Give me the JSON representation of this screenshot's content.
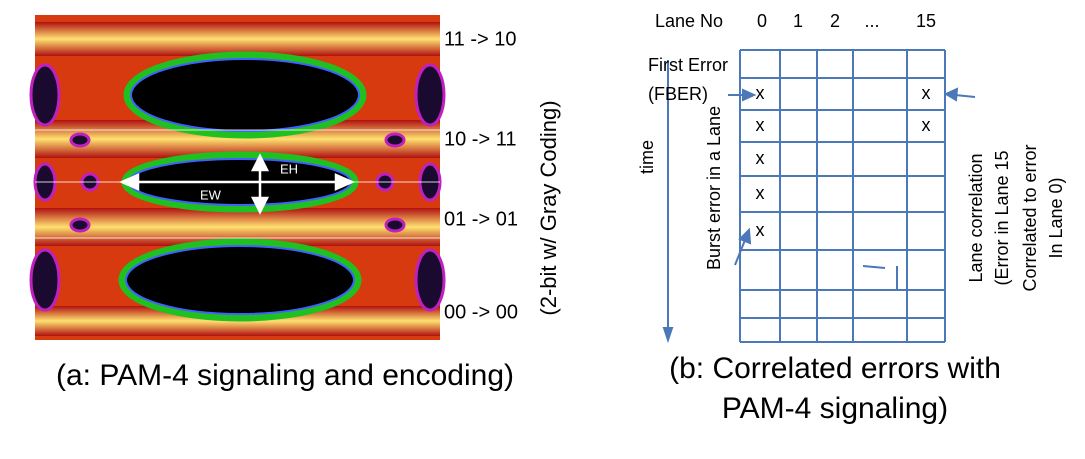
{
  "panel_a": {
    "levels": [
      "11 -> 10",
      "10 -> 11",
      "01 -> 01",
      "00 -> 00"
    ],
    "coding": "(2-bit w/ Gray Coding)",
    "eh": "EH",
    "ew": "EW",
    "caption": "(a: PAM-4 signaling and encoding)"
  },
  "panel_b": {
    "lane_no": "Lane No",
    "columns": [
      "0",
      "1",
      "2",
      "...",
      "15"
    ],
    "first_error": [
      "First Error",
      "(FBER)"
    ],
    "time": "time",
    "burst": "Burst error in a Lane",
    "correlation": [
      "Lane correlation",
      "(Error in Lane 15",
      "Correlated to error",
      "In Lane 0)"
    ],
    "grid": {
      "rows": [
        [
          null,
          null,
          null,
          null,
          null
        ],
        [
          "x",
          null,
          null,
          null,
          "x"
        ],
        [
          "x",
          null,
          null,
          null,
          "x"
        ],
        [
          "x",
          null,
          null,
          null,
          null
        ],
        [
          "x",
          null,
          null,
          null,
          null
        ],
        [
          "x",
          null,
          null,
          null,
          null
        ],
        [
          null,
          null,
          null,
          null,
          null
        ],
        [
          null,
          null,
          null,
          null,
          null
        ],
        [
          null,
          null,
          null,
          null,
          null
        ]
      ]
    },
    "caption": [
      "(b: Correlated errors with",
      "PAM-4 signaling)"
    ]
  }
}
